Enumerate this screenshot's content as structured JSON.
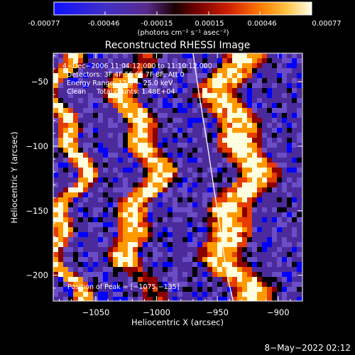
{
  "colorbar": {
    "ticks": [
      "-0.00077",
      "-0.00046",
      "-0.00015",
      "0.00015",
      "0.00046",
      "0.00077"
    ],
    "range": [
      -0.00077,
      0.00077
    ],
    "units": "(photons cm⁻² s⁻¹ asec⁻²)"
  },
  "chart_data": {
    "type": "heatmap",
    "title": "Reconstructed RHESSI Image",
    "xlabel": "Heliocentric X (arcsec)",
    "ylabel": "Heliocentric Y (arcsec)",
    "xlim": [
      -1085,
      -880
    ],
    "ylim": [
      -220,
      -28
    ],
    "x_ticks": [
      -1050,
      -1000,
      -950,
      -900
    ],
    "x_tick_labels": [
      "−1050",
      "−1000",
      "−950",
      "−900"
    ],
    "y_ticks": [
      -50,
      -100,
      -150,
      -200
    ],
    "y_tick_labels": [
      "−50",
      "−100",
      "−150",
      "−200"
    ],
    "colormap": [
      "#0000ff",
      "#4b2a9c",
      "#6b4ec6",
      "#000000",
      "#8b0000",
      "#e63c00",
      "#ff9900",
      "#ffffe0"
    ],
    "info_lines": [
      "4−Dec−2006 11:04:12.000 to 11:10:12.000",
      "Detectors: 3F 4F 5F 6F 7F 8F, Att 0",
      "Energy Range: 12.0 − 25.0 keV",
      "Clean     Total counts: 1.48E+04"
    ],
    "peak_text": "Position of Peak = [−1075,−135]",
    "peak_position": [
      -1075,
      -135
    ],
    "limb_curve": [
      [
        -970,
        -28
      ],
      [
        -965,
        -60
      ],
      [
        -958,
        -100
      ],
      [
        -950,
        -150
      ],
      [
        -942,
        -200
      ],
      [
        -937,
        -220
      ]
    ],
    "bright_regions": [
      {
        "x": [
          -1085,
          -1065
        ],
        "y": [
          -220,
          -28
        ],
        "level": "high"
      },
      {
        "x": [
          -1030,
          -1000
        ],
        "y": [
          -180,
          -50
        ],
        "level": "high"
      },
      {
        "x": [
          -955,
          -915
        ],
        "y": [
          -220,
          -35
        ],
        "level": "high"
      }
    ]
  },
  "footer_date": "8−May−2022 02:12"
}
